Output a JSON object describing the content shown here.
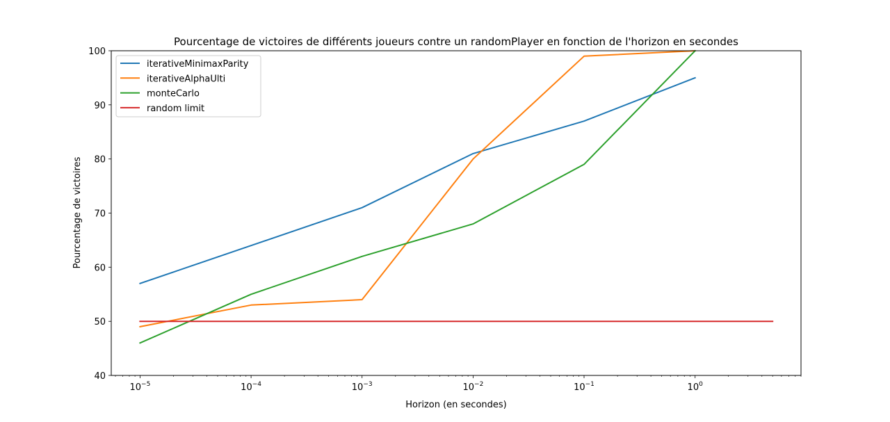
{
  "chart_data": {
    "type": "line",
    "title": "Pourcentage de victoires de différents joueurs contre un randomPlayer en fonction de l'horizon en secondes",
    "xlabel": "Horizon (en secondes)",
    "ylabel": "Pourcentage de victoires",
    "xscale": "log",
    "xlim": [
      5.5e-06,
      9
    ],
    "ylim": [
      40,
      100
    ],
    "x_ticks": [
      {
        "base": "10",
        "exp": "−5"
      },
      {
        "base": "10",
        "exp": "−4"
      },
      {
        "base": "10",
        "exp": "−3"
      },
      {
        "base": "10",
        "exp": "−2"
      },
      {
        "base": "10",
        "exp": "−1"
      },
      {
        "base": "10",
        "exp": "0"
      }
    ],
    "y_ticks": [
      "40",
      "50",
      "60",
      "70",
      "80",
      "90",
      "100"
    ],
    "legend_position": "upper left",
    "grid": false,
    "series": [
      {
        "name": "iterativeMinimaxParity",
        "color": "#1f77b4",
        "x": [
          1e-05,
          0.0001,
          0.001,
          0.01,
          0.1,
          1
        ],
        "y": [
          57,
          64,
          71,
          81,
          87,
          95
        ]
      },
      {
        "name": "iterativeAlphaUlti",
        "color": "#ff7f0e",
        "x": [
          1e-05,
          0.0001,
          0.001,
          0.01,
          0.1,
          1
        ],
        "y": [
          49,
          53,
          54,
          80,
          99,
          100
        ]
      },
      {
        "name": "monteCarlo",
        "color": "#2ca02c",
        "x": [
          1e-05,
          0.0001,
          0.001,
          0.01,
          0.1,
          1
        ],
        "y": [
          46,
          55,
          62,
          68,
          79,
          100
        ]
      },
      {
        "name": "random limit",
        "color": "#d62728",
        "x": [
          1e-05,
          5
        ],
        "y": [
          50,
          50
        ]
      }
    ]
  }
}
